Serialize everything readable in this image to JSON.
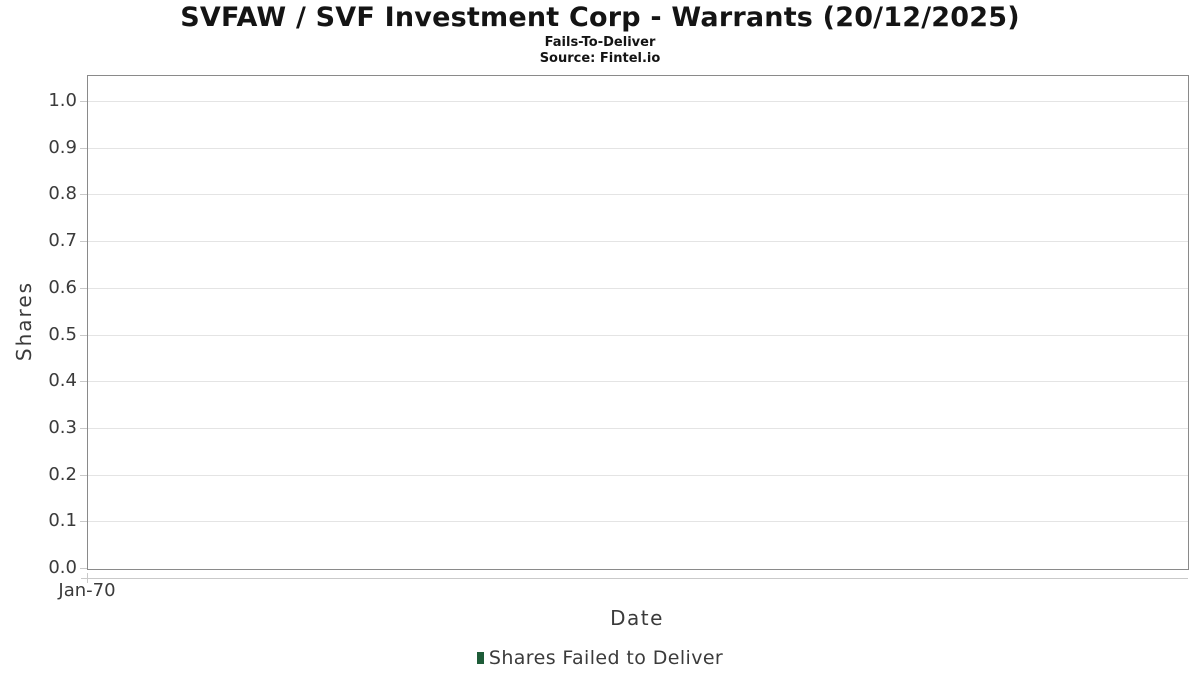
{
  "header": {
    "title": "SVFAW / SVF Investment Corp - Warrants (20/12/2025)",
    "subtitle": "Fails-To-Deliver",
    "source": "Source: Fintel.io"
  },
  "chart_data": {
    "type": "line",
    "title": "SVFAW / SVF Investment Corp - Warrants (20/12/2025)",
    "subtitle": "Fails-To-Deliver",
    "source_note": "Source: Fintel.io",
    "xlabel": "Date",
    "ylabel": "Shares",
    "x_tick_labels": [
      "Jan-70"
    ],
    "y_tick_labels": [
      "0.0",
      "0.1",
      "0.2",
      "0.3",
      "0.4",
      "0.5",
      "0.6",
      "0.7",
      "0.8",
      "0.9",
      "1.0"
    ],
    "ylim": [
      0,
      1.056
    ],
    "grid": "horizontal-only",
    "legend_position": "bottom-center",
    "legend": {
      "entries": [
        {
          "label": "Shares Failed to Deliver",
          "color": "#1e5c38"
        }
      ]
    },
    "series": [
      {
        "name": "Shares Failed to Deliver",
        "x": [],
        "values": []
      }
    ]
  },
  "colors": {
    "background": "#ffffff",
    "plot_border": "#8a8a8a",
    "gridline": "#e4e4e4",
    "tick_mark": "#c9c9c9",
    "title_text": "#141414",
    "axis_text": "#3b3b3b",
    "legend_marker": "#1e5c38"
  }
}
